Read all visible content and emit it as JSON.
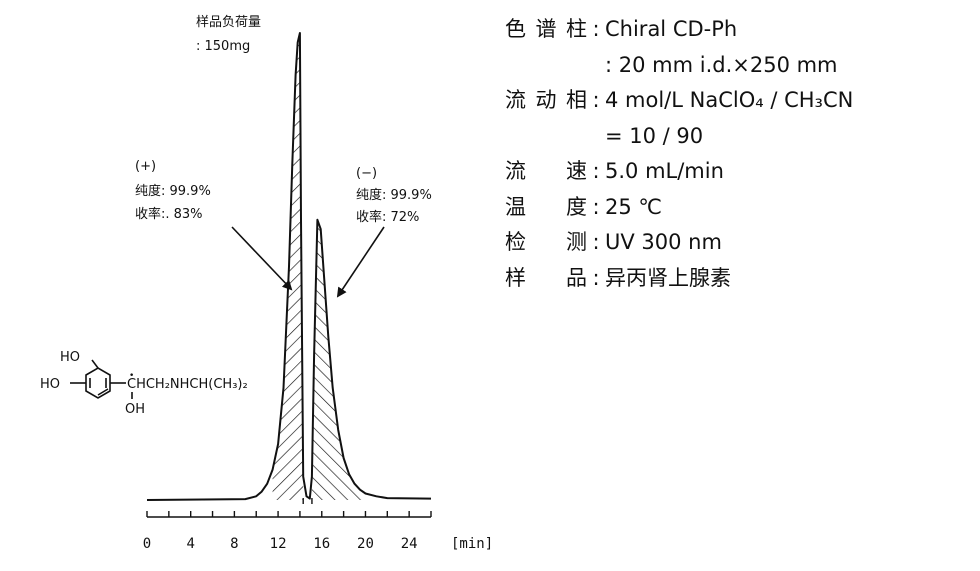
{
  "chart_data": {
    "type": "line",
    "title": "",
    "xlabel": "[min]",
    "ylabel": "",
    "xlim": [
      0,
      26
    ],
    "x_ticks": [
      0,
      4,
      8,
      12,
      16,
      20,
      24
    ],
    "x_tick_labels": [
      "0",
      "4",
      "8",
      "12",
      "16",
      "20",
      "24"
    ],
    "grid": false,
    "series": [
      {
        "values_description": "chromatogram trace",
        "x": [
          0.0,
          9.0,
          10.0,
          10.5,
          11.0,
          11.5,
          12.0,
          12.5,
          13.0,
          13.3,
          13.6,
          13.8,
          14.0,
          14.1,
          14.3,
          14.6,
          14.9,
          15.1,
          15.3,
          15.6,
          15.9,
          16.2,
          16.6,
          17.0,
          17.5,
          18.0,
          18.5,
          19.0,
          19.5,
          20.0,
          21.0,
          22.0,
          26.0
        ],
        "values": [
          0.0,
          0.2,
          0.8,
          1.8,
          3.5,
          6.5,
          12.0,
          24.0,
          50.0,
          72.0,
          91.0,
          98.0,
          100.0,
          60.0,
          5.0,
          0.8,
          0.3,
          5.0,
          31.0,
          60.0,
          58.0,
          48.0,
          35.0,
          24.0,
          15.0,
          9.0,
          5.5,
          3.5,
          2.2,
          1.4,
          0.8,
          0.4,
          0.3
        ]
      }
    ],
    "peaks": [
      {
        "sign": "(+)",
        "purity_label": "纯度: 99.9%",
        "yield_label": "收率:. 83%"
      },
      {
        "sign": "(−)",
        "purity_label": "纯度: 99.9%",
        "yield_label": "收率: 72%"
      }
    ],
    "sample_load": {
      "line1": "样品负荷量",
      "line2": ": 150mg"
    }
  },
  "structure": {
    "ho_top": "HO",
    "ho_left": "HO",
    "chain": "CHCH₂NHCH(CH₃)₂",
    "oh": "OH",
    "dot": "•"
  },
  "conditions": [
    {
      "label": "色谱柱",
      "value": "Chiral CD-Ph"
    },
    {
      "label": "",
      "value": ": 20 mm i.d.×250 mm"
    },
    {
      "label": "流动相",
      "value": "4 mol/L NaClO₄ / CH₃CN"
    },
    {
      "label": "",
      "value": "= 10 / 90"
    },
    {
      "label": "流 速",
      "value": "5.0 mL/min"
    },
    {
      "label": "温 度",
      "value": "25 ℃"
    },
    {
      "label": "检 测",
      "value": "UV 300 nm"
    },
    {
      "label": "样 品",
      "value": "异丙肾上腺素"
    }
  ]
}
